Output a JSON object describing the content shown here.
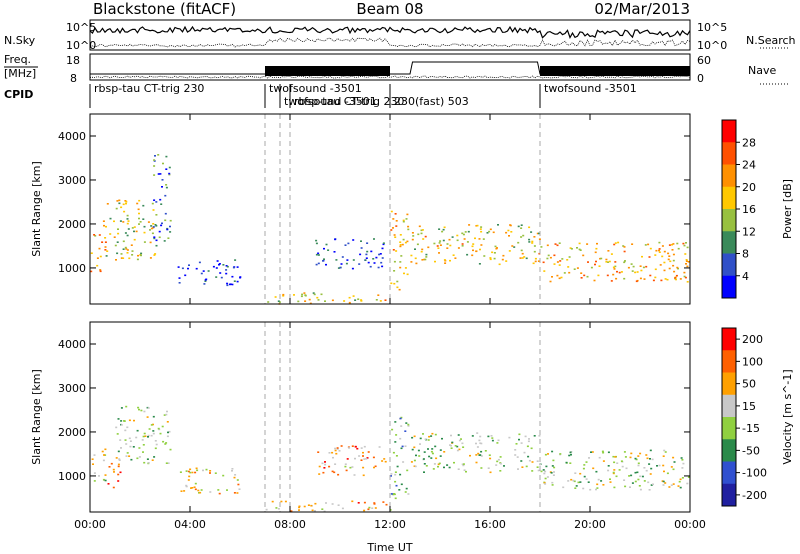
{
  "header": {
    "station": "Blackstone (fitACF)",
    "beam": "Beam 08",
    "date": "02/Mar/2013"
  },
  "strips": {
    "nsky_label": "N.Sky",
    "nsearch_label": "N.Search",
    "nsky_ticks": [
      "10^5",
      "10^0"
    ],
    "freq_label_1": "Freq.",
    "freq_label_2": "[MHz]",
    "freq_ticks": [
      "18",
      "8"
    ],
    "nave_label": "Nave",
    "nave_ticks": [
      "60",
      "0"
    ],
    "cpid_label": "CPID"
  },
  "cpid_labels": [
    {
      "text": "rbsp-tau CT-trig 230",
      "start": 0.0
    },
    {
      "text": "twofsound -3501",
      "start": 7.0
    },
    {
      "text": "twofsound -3501",
      "start": 7.6
    },
    {
      "text": "rbsp-tau CT-trig 230",
      "start": 8.0
    },
    {
      "text": "230(fast) 503",
      "start": 12.0
    },
    {
      "text": "twofsound -3501",
      "start": 18.0
    }
  ],
  "colors": {
    "power_scale": [
      "#0000ff",
      "#3050c8",
      "#3a8a5a",
      "#98c040",
      "#ffc800",
      "#ff9000",
      "#ff5000",
      "#ff0000"
    ],
    "velocity_scale": [
      "#2020a0",
      "#3050d0",
      "#2a8a4a",
      "#90d040",
      "#c8c8c8",
      "#ffa000",
      "#ff6000",
      "#ff0000"
    ]
  },
  "chart_data": [
    {
      "type": "heatmap",
      "title": "Power",
      "ylabel": "Slant Range [km]",
      "xlabel": "Time UT",
      "x_ticks": [
        "00:00",
        "04:00",
        "08:00",
        "12:00",
        "16:00",
        "20:00",
        "00:00"
      ],
      "xlim_hours": [
        0,
        24
      ],
      "ylim": [
        180,
        4500
      ],
      "y_ticks": [
        "1000",
        "2000",
        "3000",
        "4000"
      ],
      "colorbar_label": "Power [dB]",
      "colorbar_ticks": [
        "28",
        "24",
        "20",
        "16",
        "12",
        "8",
        "4"
      ],
      "colorbar_range": [
        0,
        32
      ],
      "dashed_times": [
        7.0,
        7.6,
        8.0,
        12.0,
        18.0
      ],
      "regions": [
        {
          "t0": 0.0,
          "t1": 0.6,
          "r0": 900,
          "r1": 1800,
          "level": 0.65
        },
        {
          "t0": 0.5,
          "t1": 2.7,
          "r0": 1200,
          "r1": 2600,
          "level": 0.5
        },
        {
          "t0": 2.5,
          "t1": 3.2,
          "r0": 1600,
          "r1": 3600,
          "level": 0.25
        },
        {
          "t0": 3.5,
          "t1": 6.0,
          "r0": 600,
          "r1": 1200,
          "level": 0.12
        },
        {
          "t0": 7.0,
          "t1": 12.0,
          "r0": 200,
          "r1": 450,
          "level": 0.55
        },
        {
          "t0": 9.0,
          "t1": 11.8,
          "r0": 1000,
          "r1": 1700,
          "level": 0.15
        },
        {
          "t0": 12.0,
          "t1": 12.7,
          "r0": 500,
          "r1": 2400,
          "level": 0.6
        },
        {
          "t0": 12.8,
          "t1": 18.0,
          "r0": 1100,
          "r1": 2000,
          "level": 0.55
        },
        {
          "t0": 18.0,
          "t1": 24.0,
          "r0": 700,
          "r1": 1600,
          "level": 0.6
        }
      ]
    },
    {
      "type": "heatmap",
      "title": "Velocity",
      "ylabel": "Slant Range [km]",
      "xlabel": "Time UT",
      "x_ticks": [
        "00:00",
        "04:00",
        "08:00",
        "12:00",
        "16:00",
        "20:00",
        "00:00"
      ],
      "xlim_hours": [
        0,
        24
      ],
      "ylim": [
        180,
        4500
      ],
      "y_ticks": [
        "1000",
        "2000",
        "3000",
        "4000"
      ],
      "colorbar_label": "Velocity [m s^-1]",
      "colorbar_ticks": [
        "200",
        "100",
        "50",
        "15",
        "-15",
        "-50",
        "-100",
        "-200"
      ],
      "colorbar_range": [
        -250,
        250
      ],
      "dashed_times": [
        7.0,
        7.6,
        8.0,
        12.0,
        18.0
      ],
      "regions": [
        {
          "t0": 0.0,
          "t1": 0.6,
          "r0": 900,
          "r1": 1800,
          "level": 0.5
        },
        {
          "t0": 0.6,
          "t1": 1.2,
          "r0": 700,
          "r1": 1400,
          "level": 0.78
        },
        {
          "t0": 1.0,
          "t1": 3.2,
          "r0": 1300,
          "r1": 2600,
          "level": 0.48
        },
        {
          "t0": 3.5,
          "t1": 6.0,
          "r0": 600,
          "r1": 1200,
          "level": 0.62
        },
        {
          "t0": 7.0,
          "t1": 12.0,
          "r0": 200,
          "r1": 450,
          "level": 0.68
        },
        {
          "t0": 9.0,
          "t1": 11.8,
          "r0": 1000,
          "r1": 1700,
          "level": 0.7
        },
        {
          "t0": 12.0,
          "t1": 12.7,
          "r0": 500,
          "r1": 2400,
          "level": 0.38
        },
        {
          "t0": 12.8,
          "t1": 18.0,
          "r0": 1100,
          "r1": 2000,
          "level": 0.48
        },
        {
          "t0": 18.0,
          "t1": 24.0,
          "r0": 700,
          "r1": 1600,
          "level": 0.5
        }
      ]
    }
  ]
}
